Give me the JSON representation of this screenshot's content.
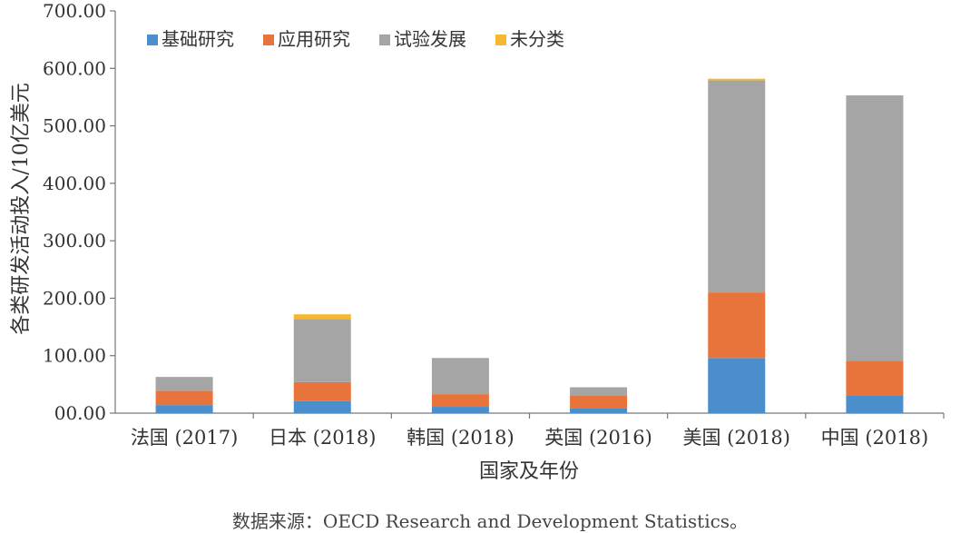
{
  "chart_data": {
    "type": "bar",
    "stacked": true,
    "categories": [
      "法国 (2017)",
      "日本 (2018)",
      "韩国 (2018)",
      "英国 (2016)",
      "美国 (2018)",
      "中国 (2018)"
    ],
    "series": [
      {
        "name": "基础研究",
        "color": "#4a8fcb",
        "values": [
          14,
          21,
          11,
          9,
          96,
          30
        ]
      },
      {
        "name": "应用研究",
        "color": "#e8743b",
        "values": [
          25,
          33,
          22,
          21,
          114,
          61
        ]
      },
      {
        "name": "试验发展",
        "color": "#a5a5a5",
        "values": [
          24,
          110,
          63,
          15,
          369,
          462
        ]
      },
      {
        "name": "未分类",
        "color": "#f6b830",
        "values": [
          0,
          8,
          0,
          0,
          3,
          0
        ]
      }
    ],
    "xlabel": "国家及年份",
    "ylabel": "各类研发活动投入/10亿美元",
    "ylim": [
      0,
      700
    ],
    "yticks": [
      0,
      100,
      200,
      300,
      400,
      500,
      600,
      700
    ],
    "ytick_labels": [
      "00.00",
      "100.00",
      "200.00",
      "300.00",
      "400.00",
      "500.00",
      "600.00",
      "700.00"
    ],
    "legend_position": "top-left",
    "grid": false
  },
  "source": "数据来源：OECD Research and Development Statistics。"
}
